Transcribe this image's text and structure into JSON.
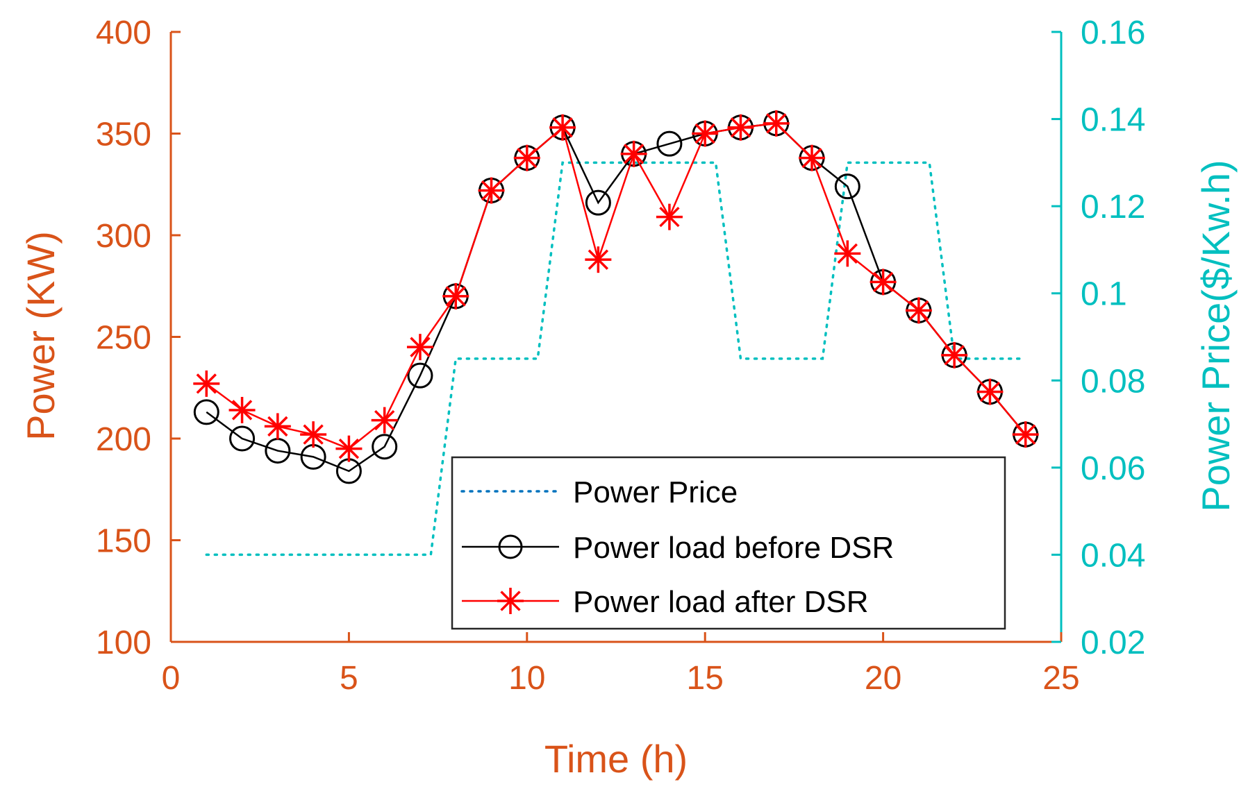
{
  "chart_data": {
    "type": "line",
    "title": "",
    "xlabel": "Time (h)",
    "ylabel_left": "Power (KW)",
    "ylabel_right": "Power Price($/Kw.h)",
    "xlim": [
      0,
      25
    ],
    "ylim_left": [
      100,
      400
    ],
    "ylim_right": [
      0.02,
      0.16
    ],
    "x_ticks": [
      0,
      5,
      10,
      15,
      20,
      25
    ],
    "y_left_ticks": [
      100,
      150,
      200,
      250,
      300,
      350,
      400
    ],
    "y_right_ticks": [
      "0.02",
      "0.04",
      "0.06",
      "0.08",
      "0.1",
      "0.12",
      "0.14",
      "0.16"
    ],
    "grid": false,
    "legend_position": "lower-center",
    "x": [
      1,
      2,
      3,
      4,
      5,
      6,
      7,
      8,
      9,
      10,
      11,
      12,
      13,
      14,
      15,
      16,
      17,
      18,
      19,
      20,
      21,
      22,
      23,
      24
    ],
    "series": [
      {
        "name": "Power Price",
        "axis": "right",
        "style": "dotted",
        "color": "#00BFBF",
        "legend_color": "#0072BD",
        "x": [
          1,
          2,
          3,
          4,
          5,
          6,
          7,
          7.3,
          8,
          9,
          10,
          10.3,
          11,
          12,
          13,
          14,
          15,
          15.3,
          16,
          17,
          18,
          18.3,
          19,
          20,
          21,
          21.3,
          22,
          23,
          24
        ],
        "values": [
          0.04,
          0.04,
          0.04,
          0.04,
          0.04,
          0.04,
          0.04,
          0.04,
          0.085,
          0.085,
          0.085,
          0.085,
          0.13,
          0.13,
          0.13,
          0.13,
          0.13,
          0.13,
          0.085,
          0.085,
          0.085,
          0.085,
          0.13,
          0.13,
          0.13,
          0.13,
          0.085,
          0.085,
          0.085
        ]
      },
      {
        "name": "Power load before DSR",
        "axis": "left",
        "marker": "circle",
        "color": "#000000",
        "values": [
          213,
          200,
          194,
          191,
          184,
          196,
          231,
          270,
          322,
          338,
          353,
          316,
          340,
          345,
          350,
          353,
          355,
          338,
          324,
          277,
          263,
          241,
          223,
          202
        ]
      },
      {
        "name": "Power load after DSR",
        "axis": "left",
        "marker": "asterisk",
        "color": "#FF0000",
        "values": [
          227,
          214,
          206,
          202,
          195,
          209,
          245,
          270,
          322,
          338,
          353,
          288,
          340,
          309,
          350,
          353,
          355,
          338,
          291,
          277,
          263,
          241,
          223,
          202
        ]
      }
    ],
    "colors": {
      "left_axis": "#D95319",
      "right_axis": "#00BFBF",
      "axis_title_x": "#D95319"
    }
  }
}
